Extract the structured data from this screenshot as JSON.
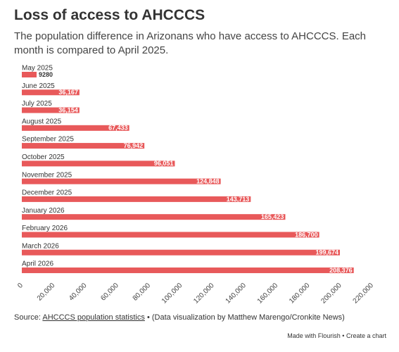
{
  "chart_data": {
    "type": "bar",
    "orientation": "horizontal",
    "title": "Loss of access to AHCCCS",
    "subtitle": "The population difference in Arizonans who have access to AHCCCS. Each month is compared to April 2025.",
    "categories": [
      "May 2025",
      "June 2025",
      "July 2025",
      "August 2025",
      "September 2025",
      "October 2025",
      "November 2025",
      "December 2025",
      "January 2026",
      "February 2026",
      "March 2026",
      "April 2026"
    ],
    "values": [
      9280,
      36167,
      36154,
      67433,
      76942,
      96051,
      124848,
      143713,
      165423,
      186700,
      199674,
      208376
    ],
    "value_labels": [
      "9280",
      "36,167",
      "36,154",
      "67,433",
      "76,942",
      "96,051",
      "124,848",
      "143,713",
      "165,423",
      "186,700",
      "199,674",
      "208,376"
    ],
    "color": "#e8595a",
    "xlim": [
      0,
      220000
    ],
    "xticks": [
      0,
      {
        "value": 20000,
        "label": "20,000"
      },
      {
        "value": 40000,
        "label": "40,000"
      },
      {
        "value": 60000,
        "label": "60,000"
      },
      {
        "value": 80000,
        "label": "80,000"
      },
      {
        "value": 100000,
        "label": "100,000"
      },
      {
        "value": 120000,
        "label": "120,000"
      },
      {
        "value": 140000,
        "label": "140,000"
      },
      {
        "value": 160000,
        "label": "160,000"
      },
      {
        "value": 180000,
        "label": "180,000"
      },
      {
        "value": 200000,
        "label": "200,000"
      },
      {
        "value": 220000,
        "label": "220,000"
      }
    ],
    "grid": false,
    "source": {
      "label": "Source:",
      "link": "AHCCCS population statistics",
      "text": "• (Data visualization by Matthew Marengo/Cronkite News)"
    },
    "footer": [
      "Made with Flourish",
      "•",
      "Create a chart"
    ]
  }
}
